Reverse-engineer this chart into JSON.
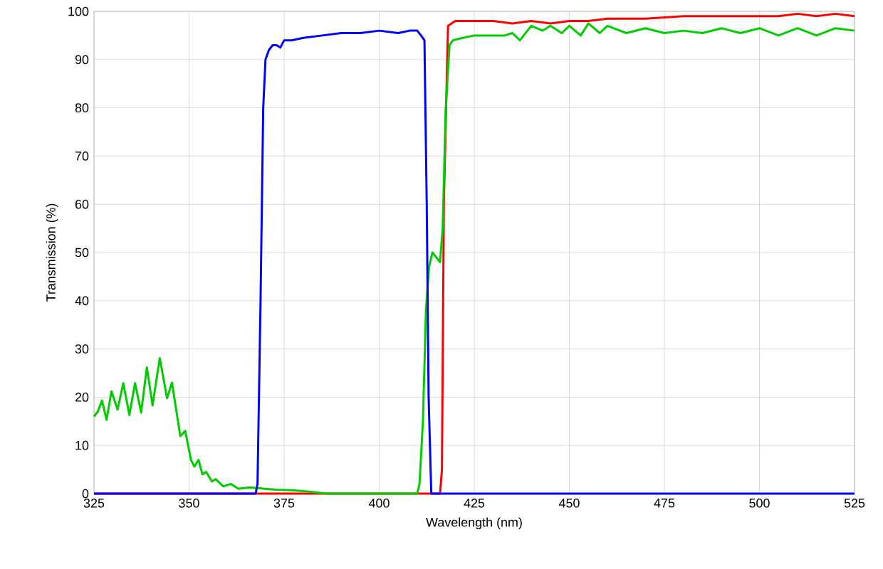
{
  "chart_data": {
    "type": "line",
    "xlabel": "Wavelength (nm)",
    "ylabel": "Transmission (%)",
    "xlim": [
      325,
      525
    ],
    "ylim": [
      0,
      100
    ],
    "xticks": [
      325,
      350,
      375,
      400,
      425,
      450,
      475,
      500,
      525
    ],
    "yticks": [
      0,
      10,
      20,
      30,
      40,
      50,
      60,
      70,
      80,
      90,
      100
    ],
    "grid": true,
    "marker": "none",
    "line_style": "solid",
    "series": [
      {
        "color": "#ff0000",
        "x": [
          325,
          400,
          416,
          416.5,
          417,
          418.1,
          420,
          425,
          430,
          435,
          440,
          445,
          450,
          455,
          460,
          470,
          480,
          490,
          500,
          505,
          510,
          515,
          520,
          525
        ],
        "values": [
          0,
          0,
          0,
          5,
          60,
          97,
          98,
          98,
          98,
          97.5,
          98,
          97.5,
          98,
          98,
          98.5,
          98.5,
          99,
          99,
          99,
          99,
          99.5,
          99,
          99.5,
          99
        ]
      },
      {
        "color": "#00cc00",
        "x": [
          325,
          326,
          327.1,
          328.3,
          329.6,
          331.2,
          332.7,
          334.3,
          335.8,
          337.4,
          338.9,
          340.4,
          342.3,
          344.2,
          345.5,
          347.7,
          349,
          350.5,
          351.4,
          352.5,
          353.5,
          354.5,
          356,
          357,
          359,
          361,
          363,
          366,
          370,
          373,
          377,
          380,
          383,
          386,
          400,
          410,
          410.6,
          411.5,
          412.3,
          413.1,
          414,
          415,
          416,
          416.7,
          417.5,
          418.5,
          419.4,
          422,
          425,
          430,
          433,
          435,
          437,
          440,
          443,
          445,
          448,
          450,
          453,
          455,
          458,
          460,
          465,
          470,
          475,
          480,
          485,
          490,
          495,
          500,
          505,
          510,
          515,
          520,
          525
        ],
        "values": [
          16,
          17,
          19.3,
          15.3,
          21.2,
          17.4,
          22.9,
          16.3,
          22.9,
          16.8,
          26.2,
          18.3,
          28.1,
          19.8,
          23,
          11.9,
          13,
          7,
          5.6,
          7,
          4,
          4.5,
          2.5,
          3,
          1.5,
          2,
          1,
          1.3,
          1,
          0.8,
          0.7,
          0.5,
          0.3,
          0,
          0,
          0,
          2,
          15,
          38,
          47,
          50,
          49,
          48,
          55,
          80,
          93,
          94,
          94.5,
          95,
          95,
          95,
          95.5,
          94,
          97,
          96,
          97,
          95.5,
          97,
          95,
          97.5,
          95.5,
          97,
          95.5,
          96.5,
          95.5,
          96,
          95.5,
          96.5,
          95.5,
          96.5,
          95,
          96.5,
          95,
          96.5,
          96
        ]
      },
      {
        "color": "#0000ff",
        "x": [
          325,
          367.5,
          368,
          368.8,
          369.5,
          370.1,
          371,
          372,
          373,
          374,
          375,
          377,
          380,
          385,
          390,
          395,
          400,
          405,
          408,
          410,
          411,
          411.9,
          412.5,
          413,
          413.7,
          420,
          525
        ],
        "values": [
          0,
          0,
          2,
          40,
          80,
          90,
          92,
          93,
          93,
          92.5,
          94,
          94,
          94.5,
          95,
          95.5,
          95.5,
          96,
          95.5,
          96,
          96,
          95,
          94,
          60,
          20,
          0,
          0,
          0
        ]
      }
    ]
  }
}
